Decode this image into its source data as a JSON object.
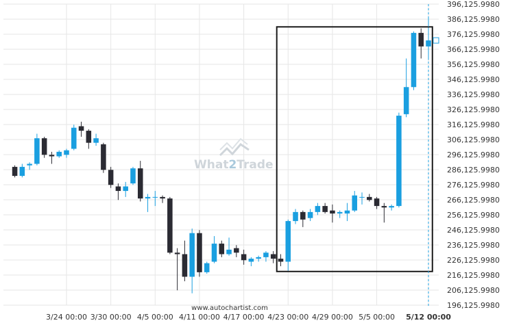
{
  "chart_data": {
    "type": "candlestick",
    "title": "",
    "xlabel": "",
    "ylabel": "",
    "y_ticks": [
      "196,125.9980",
      "206,125.9980",
      "216,125.9980",
      "226,125.9980",
      "236,125.9980",
      "246,125.9980",
      "256,125.9980",
      "266,125.9980",
      "276,125.9980",
      "286,125.9980",
      "296,125.9980",
      "306,125.9980",
      "316,125.9980",
      "326,125.9980",
      "336,125.9980",
      "346,125.9980",
      "356,125.9980",
      "366,125.9980",
      "376,125.9980",
      "386,125.9980",
      "396,125.9980"
    ],
    "x_ticks": [
      "3/24 00:00",
      "3/30 00:00",
      "4/5 00:00",
      "4/11 00:00",
      "4/17 00:00",
      "4/23 00:00",
      "4/29 00:00",
      "5/5 00:00",
      "5/12 00:00"
    ],
    "x_tick_dates": [
      "2025-03-24",
      "2025-03-30",
      "2025-04-05",
      "2025-04-11",
      "2025-04-17",
      "2025-04-23",
      "2025-04-29",
      "2025-05-05",
      "2025-05-12"
    ],
    "grid": true,
    "colors": {
      "up": "#1a9fe0",
      "down": "#2b2b33",
      "rectangle": "#1a1a1a",
      "grid": "#e6e6e6",
      "marker": "#1a9fe0"
    },
    "highlight": {
      "from": "2025-04-22",
      "to": "2025-05-12",
      "low": 218500,
      "high": 381000
    },
    "current_time_marker": "2025-05-12",
    "ohlc": [
      {
        "date": "2025-03-17",
        "open": 288000,
        "high": 289000,
        "low": 281000,
        "close": 282000
      },
      {
        "date": "2025-03-18",
        "open": 282000,
        "high": 290000,
        "low": 281000,
        "close": 288000
      },
      {
        "date": "2025-03-19",
        "open": 289000,
        "high": 291000,
        "low": 286000,
        "close": 290000
      },
      {
        "date": "2025-03-20",
        "open": 290000,
        "high": 310000,
        "low": 289000,
        "close": 307000
      },
      {
        "date": "2025-03-21",
        "open": 307000,
        "high": 308000,
        "low": 294000,
        "close": 296000
      },
      {
        "date": "2025-03-22",
        "open": 296000,
        "high": 298000,
        "low": 290000,
        "close": 295000
      },
      {
        "date": "2025-03-23",
        "open": 295000,
        "high": 299000,
        "low": 294000,
        "close": 298000
      },
      {
        "date": "2025-03-24",
        "open": 296000,
        "high": 300000,
        "low": 294000,
        "close": 299000
      },
      {
        "date": "2025-03-25",
        "open": 300000,
        "high": 316000,
        "low": 299000,
        "close": 314000
      },
      {
        "date": "2025-03-26",
        "open": 315000,
        "high": 318000,
        "low": 308000,
        "close": 312000
      },
      {
        "date": "2025-03-27",
        "open": 312000,
        "high": 313000,
        "low": 300000,
        "close": 304000
      },
      {
        "date": "2025-03-28",
        "open": 304000,
        "high": 310000,
        "low": 302000,
        "close": 307000
      },
      {
        "date": "2025-03-29",
        "open": 303000,
        "high": 304000,
        "low": 284000,
        "close": 286000
      },
      {
        "date": "2025-03-30",
        "open": 286000,
        "high": 288000,
        "low": 274000,
        "close": 276000
      },
      {
        "date": "2025-03-31",
        "open": 275000,
        "high": 277000,
        "low": 266000,
        "close": 272000
      },
      {
        "date": "2025-04-01",
        "open": 272000,
        "high": 278000,
        "low": 268000,
        "close": 275000
      },
      {
        "date": "2025-04-02",
        "open": 277000,
        "high": 288000,
        "low": 276000,
        "close": 287000
      },
      {
        "date": "2025-04-03",
        "open": 287000,
        "high": 292000,
        "low": 265000,
        "close": 267000
      },
      {
        "date": "2025-04-04",
        "open": 267000,
        "high": 270000,
        "low": 258000,
        "close": 268000
      },
      {
        "date": "2025-04-05",
        "open": 268000,
        "high": 272000,
        "low": 262000,
        "close": 268000
      },
      {
        "date": "2025-04-06",
        "open": 268000,
        "high": 269000,
        "low": 264000,
        "close": 267000
      },
      {
        "date": "2025-04-07",
        "open": 267000,
        "high": 268000,
        "low": 230000,
        "close": 231000
      },
      {
        "date": "2025-04-08",
        "open": 231000,
        "high": 234000,
        "low": 206000,
        "close": 230000
      },
      {
        "date": "2025-04-09",
        "open": 230000,
        "high": 239000,
        "low": 212000,
        "close": 215000
      },
      {
        "date": "2025-04-10",
        "open": 215000,
        "high": 247000,
        "low": 204000,
        "close": 244000
      },
      {
        "date": "2025-04-11",
        "open": 244000,
        "high": 246000,
        "low": 215000,
        "close": 218000
      },
      {
        "date": "2025-04-12",
        "open": 218000,
        "high": 225000,
        "low": 217000,
        "close": 224000
      },
      {
        "date": "2025-04-13",
        "open": 225000,
        "high": 242000,
        "low": 224000,
        "close": 237000
      },
      {
        "date": "2025-04-14",
        "open": 237000,
        "high": 239000,
        "low": 228000,
        "close": 230000
      },
      {
        "date": "2025-04-15",
        "open": 230000,
        "high": 241000,
        "low": 229000,
        "close": 233000
      },
      {
        "date": "2025-04-16",
        "open": 234000,
        "high": 236000,
        "low": 228000,
        "close": 231000
      },
      {
        "date": "2025-04-17",
        "open": 230000,
        "high": 233000,
        "low": 223000,
        "close": 226000
      },
      {
        "date": "2025-04-18",
        "open": 225000,
        "high": 228000,
        "low": 222000,
        "close": 227000
      },
      {
        "date": "2025-04-19",
        "open": 227000,
        "high": 229000,
        "low": 225000,
        "close": 228000
      },
      {
        "date": "2025-04-20",
        "open": 228000,
        "high": 232000,
        "low": 225000,
        "close": 231000
      },
      {
        "date": "2025-04-21",
        "open": 230000,
        "high": 232000,
        "low": 224000,
        "close": 227000
      },
      {
        "date": "2025-04-22",
        "open": 227000,
        "high": 230000,
        "low": 222000,
        "close": 225000
      },
      {
        "date": "2025-04-23",
        "open": 225000,
        "high": 253000,
        "low": 219000,
        "close": 252000
      },
      {
        "date": "2025-04-24",
        "open": 252000,
        "high": 260000,
        "low": 250000,
        "close": 258000
      },
      {
        "date": "2025-04-25",
        "open": 258000,
        "high": 259000,
        "low": 248000,
        "close": 253000
      },
      {
        "date": "2025-04-26",
        "open": 254000,
        "high": 260000,
        "low": 252000,
        "close": 258000
      },
      {
        "date": "2025-04-27",
        "open": 258000,
        "high": 264000,
        "low": 256000,
        "close": 262000
      },
      {
        "date": "2025-04-28",
        "open": 262000,
        "high": 264000,
        "low": 257000,
        "close": 258000
      },
      {
        "date": "2025-04-29",
        "open": 259000,
        "high": 263000,
        "low": 251000,
        "close": 257000
      },
      {
        "date": "2025-04-30",
        "open": 257000,
        "high": 259000,
        "low": 254000,
        "close": 258000
      },
      {
        "date": "2025-05-01",
        "open": 257000,
        "high": 264000,
        "low": 252000,
        "close": 259000
      },
      {
        "date": "2025-05-02",
        "open": 259000,
        "high": 272000,
        "low": 258000,
        "close": 269000
      },
      {
        "date": "2025-05-03",
        "open": 268000,
        "high": 271000,
        "low": 263000,
        "close": 268000
      },
      {
        "date": "2025-05-04",
        "open": 268000,
        "high": 270000,
        "low": 265000,
        "close": 266000
      },
      {
        "date": "2025-05-05",
        "open": 267000,
        "high": 268000,
        "low": 260000,
        "close": 262000
      },
      {
        "date": "2025-05-06",
        "open": 262000,
        "high": 264000,
        "low": 251000,
        "close": 261000
      },
      {
        "date": "2025-05-07",
        "open": 261000,
        "high": 263000,
        "low": 259000,
        "close": 262000
      },
      {
        "date": "2025-05-08",
        "open": 262000,
        "high": 324000,
        "low": 261000,
        "close": 322000
      },
      {
        "date": "2025-05-09",
        "open": 323000,
        "high": 360000,
        "low": 321000,
        "close": 341000
      },
      {
        "date": "2025-05-10",
        "open": 341000,
        "high": 378000,
        "low": 339000,
        "close": 377000
      },
      {
        "date": "2025-05-11",
        "open": 377000,
        "high": 380000,
        "low": 360000,
        "close": 368000
      },
      {
        "date": "2025-05-12",
        "open": 368000,
        "high": 388000,
        "low": 359000,
        "close": 372000
      }
    ]
  },
  "watermark": {
    "brand_left": "What",
    "brand_digit": "2",
    "brand_right": "Trade",
    "icon": "chart-arrow-icon"
  },
  "footer": {
    "source": "www.autochartist.com"
  }
}
